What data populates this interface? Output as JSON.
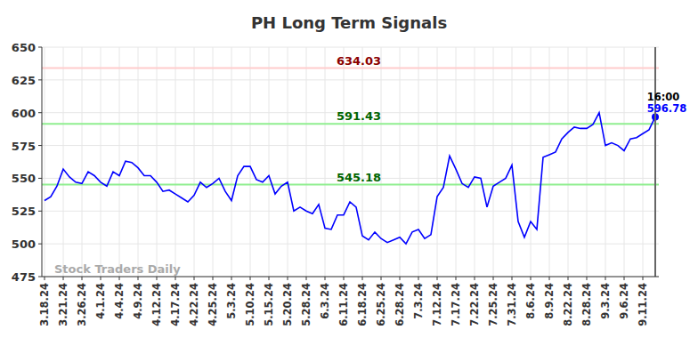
{
  "chart_data": {
    "type": "line",
    "title": "PH Long Term Signals",
    "color": "#0000ff",
    "grid": true,
    "ylim": [
      475,
      650
    ],
    "yticks": [
      475,
      500,
      525,
      550,
      575,
      600,
      625,
      650
    ],
    "categories": [
      "3.18.24",
      null,
      null,
      "3.21.24",
      null,
      null,
      "3.26.24",
      null,
      null,
      "4.1.24",
      null,
      null,
      "4.4.24",
      null,
      null,
      "4.9.24",
      null,
      null,
      "4.12.24",
      null,
      null,
      "4.17.24",
      null,
      null,
      "4.22.24",
      null,
      null,
      "4.25.24",
      null,
      null,
      "5.3.24",
      null,
      null,
      "5.10.24",
      null,
      null,
      "5.15.24",
      null,
      null,
      "5.20.24",
      null,
      null,
      "5.28.24",
      null,
      null,
      "6.3.24",
      null,
      null,
      "6.11.24",
      null,
      null,
      "6.18.24",
      null,
      null,
      "6.25.24",
      null,
      null,
      "6.28.24",
      null,
      null,
      "7.3.24",
      null,
      null,
      "7.12.24",
      null,
      null,
      "7.17.24",
      null,
      null,
      "7.22.24",
      null,
      null,
      "7.25.24",
      null,
      null,
      "7.31.24",
      null,
      null,
      "8.6.24",
      null,
      null,
      "8.9.24",
      null,
      null,
      "8.22.24",
      null,
      null,
      "8.28.24",
      null,
      null,
      "9.3.24",
      null,
      null,
      "9.6.24",
      null,
      null,
      "9.11.24",
      null,
      null
    ],
    "values": [
      533,
      536,
      544,
      557,
      551,
      547,
      546,
      555,
      552,
      547,
      544,
      555,
      552,
      563,
      562,
      558,
      552,
      552,
      547,
      540,
      541,
      538,
      535,
      532,
      537,
      547,
      543,
      546,
      550,
      540,
      533,
      552,
      559,
      559,
      549,
      547,
      552,
      538,
      544,
      547,
      525,
      528,
      525,
      523,
      530,
      512,
      511,
      522,
      522,
      532,
      528,
      506,
      503,
      509,
      504,
      501,
      503,
      505,
      500,
      509,
      511,
      504,
      507,
      536,
      543,
      567,
      557,
      546,
      543,
      551,
      550,
      528,
      544,
      547,
      550,
      560,
      517,
      505,
      517,
      511,
      566,
      568,
      570,
      580,
      585,
      589,
      588,
      588,
      591,
      600,
      575,
      577,
      575,
      571,
      580,
      581,
      584,
      587,
      596.78
    ],
    "signals": [
      {
        "value": 634.03,
        "color": "#ffcccc"
      },
      {
        "value": 591.43,
        "color": "#90ee90"
      },
      {
        "value": 545.18,
        "color": "#90ee90"
      }
    ],
    "annotation": "16:00",
    "watermark": "Stock Traders Daily"
  }
}
